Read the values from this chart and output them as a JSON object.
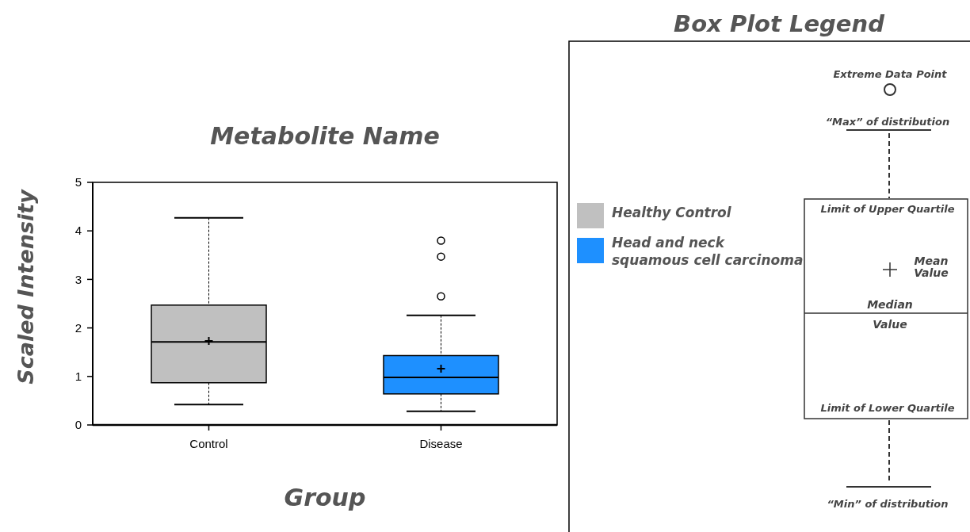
{
  "chart_data": {
    "type": "box",
    "title": "Metabolite Name",
    "xlabel": "Group",
    "ylabel": "Scaled Intensity",
    "categories": [
      "Control",
      "Disease"
    ],
    "series": [
      {
        "name": "Healthy Control",
        "color": "#c0c0c0",
        "boxes": [
          {
            "low": 0.42,
            "q1": 0.87,
            "median": 1.71,
            "q3": 2.47,
            "high": 4.27,
            "mean": 1.73
          },
          null
        ]
      },
      {
        "name": "Head and neck squamous cell carcinoma",
        "color": "#1e90ff",
        "boxes": [
          null,
          {
            "low": 0.28,
            "q1": 0.64,
            "median": 0.98,
            "q3": 1.43,
            "high": 2.26,
            "mean": 1.16,
            "outliers": [
              3.8,
              3.47,
              2.65
            ]
          }
        ]
      }
    ],
    "ylim": [
      0,
      5
    ],
    "yticks": [
      0,
      1,
      2,
      3,
      4,
      5
    ],
    "grid": false,
    "legend": "right",
    "legend_title": "Box Plot Legend",
    "annotations": [
      "Extreme Data Point",
      "“Max” of distribution",
      "Limit of Upper Quartile",
      "Mean Value",
      "Median Value",
      "Limit of Lower Quartile",
      "“Min” of distribution"
    ]
  }
}
